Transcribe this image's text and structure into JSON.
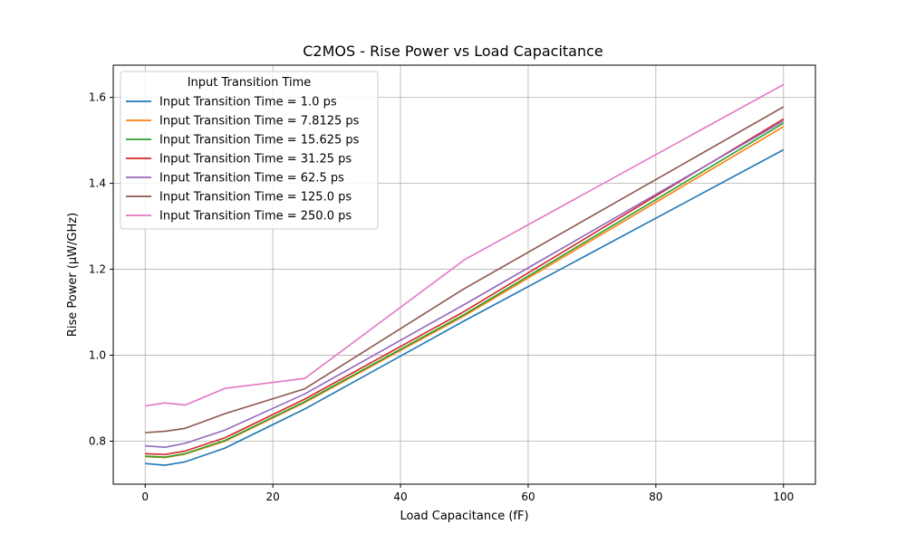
{
  "chart_data": {
    "type": "line",
    "title": "C2MOS - Rise Power vs Load Capacitance",
    "xlabel": "Load Capacitance (fF)",
    "ylabel": "Rise Power (µW/GHz)",
    "xlim": [
      -5,
      105
    ],
    "ylim": [
      0.7,
      1.675
    ],
    "xticks": [
      0,
      20,
      40,
      60,
      80,
      100
    ],
    "yticks": [
      0.8,
      1.0,
      1.2,
      1.4,
      1.6
    ],
    "ytick_labels": [
      "0.8",
      "1.0",
      "1.2",
      "1.4",
      "1.6"
    ],
    "grid": true,
    "legend_title": "Input Transition Time",
    "legend_position": "upper-left",
    "x": [
      0,
      3.125,
      6.25,
      12.5,
      25,
      50,
      100
    ],
    "series": [
      {
        "name": "Input Transition Time = 1.0 ps",
        "color": "#1f77b4",
        "values": [
          0.748,
          0.744,
          0.752,
          0.784,
          0.875,
          1.08,
          1.478
        ]
      },
      {
        "name": "Input Transition Time = 7.8125 ps",
        "color": "#ff7f0e",
        "values": [
          0.764,
          0.762,
          0.77,
          0.8,
          0.89,
          1.092,
          1.532
        ]
      },
      {
        "name": "Input Transition Time = 15.625 ps",
        "color": "#2ca02c",
        "values": [
          0.765,
          0.763,
          0.771,
          0.802,
          0.892,
          1.095,
          1.54
        ]
      },
      {
        "name": "Input Transition Time = 31.25 ps",
        "color": "#d62728",
        "values": [
          0.771,
          0.769,
          0.777,
          0.808,
          0.898,
          1.102,
          1.55
        ]
      },
      {
        "name": "Input Transition Time = 62.5 ps",
        "color": "#9467bd",
        "values": [
          0.789,
          0.786,
          0.795,
          0.826,
          0.91,
          1.118,
          1.545
        ]
      },
      {
        "name": "Input Transition Time = 125.0 ps",
        "color": "#8c564b",
        "values": [
          0.82,
          0.823,
          0.83,
          0.864,
          0.922,
          1.155,
          1.578
        ]
      },
      {
        "name": "Input Transition Time = 250.0 ps",
        "color": "#e377c2",
        "values": [
          0.882,
          0.889,
          0.884,
          0.923,
          0.946,
          1.222,
          1.63
        ]
      }
    ]
  }
}
